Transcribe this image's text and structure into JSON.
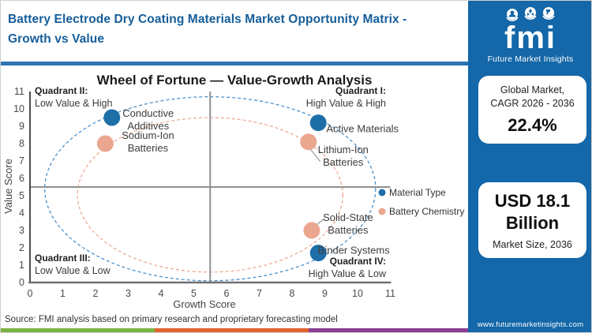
{
  "header": {
    "title_line1": "Battery Electrode Dry Coating Materials Market Opportunity Matrix -",
    "title_line2": "Growth vs Value"
  },
  "logo": {
    "text": "fmi",
    "subtext": "Future Market Insights"
  },
  "sidebar": {
    "card1": {
      "line1": "Global Market,",
      "line2": "CAGR 2026 - 2036",
      "value": "22.4%"
    },
    "card2": {
      "value_line1": "USD 18.1",
      "value_line2": "Billion",
      "label": "Market Size, 2036"
    },
    "website": "www.futuremarketinsights.com"
  },
  "footer": {
    "source": "Source: FMI analysis based on primary research and proprietary forecasting model",
    "strip_colors": [
      "#7cb342",
      "#e2622d",
      "#8b3f92"
    ]
  },
  "colors": {
    "sidebar_bg": "#1467a8",
    "header_title": "#155d99",
    "header_rule": "#2d74b5",
    "material_type": "#1e6ea8",
    "battery_chemistry": "#eba68f"
  },
  "chart_data": {
    "type": "scatter",
    "title": "Wheel of Fortune — Value-Growth Analysis",
    "xlabel": "Growth Score",
    "ylabel": "Value Score",
    "xlim": [
      0,
      11
    ],
    "ylim": [
      0,
      11
    ],
    "xticks": [
      0,
      1,
      2,
      3,
      4,
      5,
      6,
      7,
      8,
      9,
      10,
      11
    ],
    "yticks": [
      0,
      1,
      2,
      3,
      4,
      5,
      6,
      7,
      8,
      9,
      10,
      11
    ],
    "grid": false,
    "quadrant_divider": {
      "x": 5.5,
      "y": 5.5
    },
    "quadrants": [
      {
        "position": "top-left",
        "bold": "Quadrant II:",
        "sub": "Low Value & High"
      },
      {
        "position": "top-right",
        "bold": "Quadrant I:",
        "sub": "High Value & High"
      },
      {
        "position": "bottom-left",
        "bold": "Quadrant III:",
        "sub": "Low Value & Low"
      },
      {
        "position": "bottom-right",
        "bold": "Quadrant IV:",
        "sub": "High Value & Low"
      }
    ],
    "legend": {
      "position": "right-middle",
      "items": [
        {
          "label": "Material Type",
          "color": "#1e6ea8"
        },
        {
          "label": "Battery Chemistry",
          "color": "#eba68f"
        }
      ]
    },
    "series": [
      {
        "name": "Material Type",
        "color": "#1e6ea8",
        "points": [
          {
            "label": "Conductive Additives",
            "x": 2.5,
            "y": 9.5,
            "label_lines": [
              "Conductive",
              "Additives"
            ],
            "label_dx": 46,
            "label_dy": -5
          },
          {
            "label": "Active Materials",
            "x": 8.8,
            "y": 9.2,
            "label_lines": [
              "Active Materials"
            ],
            "label_dx": 56,
            "label_dy": 8
          },
          {
            "label": "Binder Systems",
            "x": 8.8,
            "y": 1.7,
            "label_lines": [
              "Binder Systems"
            ],
            "label_dx": 45,
            "label_dy": -3
          }
        ]
      },
      {
        "name": "Battery Chemistry",
        "color": "#eba68f",
        "points": [
          {
            "label": "Sodium-Ion Batteries",
            "x": 2.3,
            "y": 8.0,
            "label_lines": [
              "Sodium-Ion",
              "Batteries"
            ],
            "label_dx": 54,
            "label_dy": -10
          },
          {
            "label": "Lithium-Ion Batteries",
            "x": 8.5,
            "y": 8.1,
            "label_lines": [
              "Lithium-Ion",
              "Batteries"
            ],
            "label_dx": 44,
            "label_dy": 10,
            "leader": [
              3,
              10,
              15,
              25
            ]
          },
          {
            "label": "Solid-State Batteries",
            "x": 8.6,
            "y": 3.0,
            "label_lines": [
              "Solid-State",
              "Batteries"
            ],
            "label_dx": 46,
            "label_dy": -16,
            "leader": [
              6,
              -7,
              16,
              -15
            ]
          }
        ]
      }
    ],
    "ellipses": [
      {
        "name": "material-type-orbit",
        "color": "#4c92cc",
        "cx": 5.5,
        "cy": 5.4,
        "rx": 5.05,
        "ry": 5.3
      },
      {
        "name": "battery-chemistry-orbit",
        "color": "#edab96",
        "cx": 5.5,
        "cy": 5.05,
        "rx": 4.05,
        "ry": 4.45
      }
    ]
  }
}
